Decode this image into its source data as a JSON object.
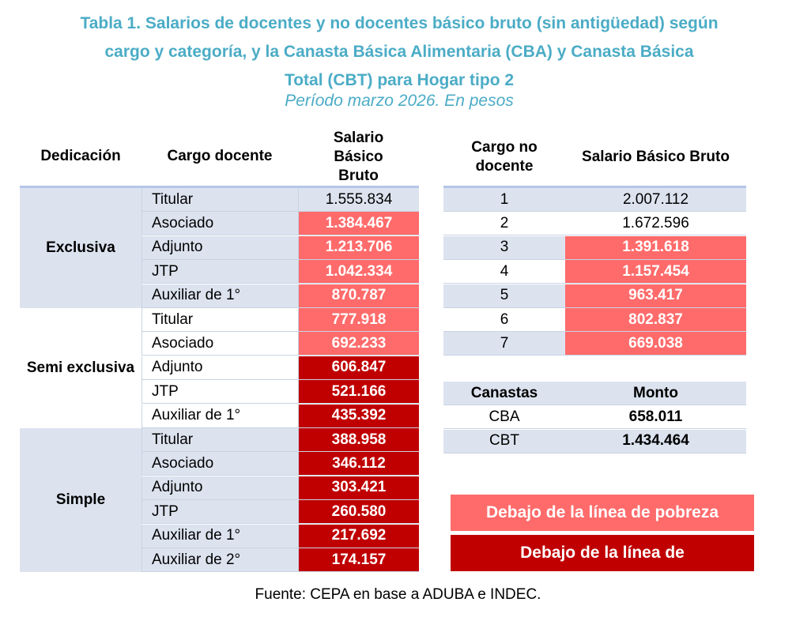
{
  "title": {
    "line1": "Tabla 1. Salarios de docentes y no docentes básico bruto (sin antigüedad) según",
    "line2": "cargo y categoría, y la Canasta Básica Alimentaria (CBA) y Canasta Básica",
    "line3": "Total (CBT) para Hogar tipo 2",
    "subtitle": "Período marzo 2026. En pesos"
  },
  "docentes": {
    "headers": {
      "dedicacion": "Dedicación",
      "cargo": "Cargo docente",
      "salario": "Salario Básico Bruto"
    },
    "groups": [
      {
        "name": "Exclusiva",
        "rows": [
          {
            "cargo": "Titular",
            "salario": "1.555.834",
            "status": "none"
          },
          {
            "cargo": "Asociado",
            "salario": "1.384.467",
            "status": "pobreza"
          },
          {
            "cargo": "Adjunto",
            "salario": "1.213.706",
            "status": "pobreza"
          },
          {
            "cargo": "JTP",
            "salario": "1.042.334",
            "status": "pobreza"
          },
          {
            "cargo": "Auxiliar de 1°",
            "salario": "870.787",
            "status": "pobreza"
          }
        ]
      },
      {
        "name": "Semi exclusiva",
        "rows": [
          {
            "cargo": "Titular",
            "salario": "777.918",
            "status": "pobreza"
          },
          {
            "cargo": "Asociado",
            "salario": "692.233",
            "status": "pobreza"
          },
          {
            "cargo": "Adjunto",
            "salario": "606.847",
            "status": "indigencia"
          },
          {
            "cargo": "JTP",
            "salario": "521.166",
            "status": "indigencia"
          },
          {
            "cargo": "Auxiliar de 1°",
            "salario": "435.392",
            "status": "indigencia"
          }
        ]
      },
      {
        "name": "Simple",
        "rows": [
          {
            "cargo": "Titular",
            "salario": "388.958",
            "status": "indigencia"
          },
          {
            "cargo": "Asociado",
            "salario": "346.112",
            "status": "indigencia"
          },
          {
            "cargo": "Adjunto",
            "salario": "303.421",
            "status": "indigencia"
          },
          {
            "cargo": "JTP",
            "salario": "260.580",
            "status": "indigencia"
          },
          {
            "cargo": "Auxiliar de 1°",
            "salario": "217.692",
            "status": "indigencia"
          },
          {
            "cargo": "Auxiliar de 2°",
            "salario": "174.157",
            "status": "indigencia"
          }
        ]
      }
    ]
  },
  "no_docentes": {
    "headers": {
      "cargo": "Cargo no docente",
      "salario": "Salario Básico Bruto"
    },
    "rows": [
      {
        "cargo": "1",
        "salario": "2.007.112",
        "status": "none"
      },
      {
        "cargo": "2",
        "salario": "1.672.596",
        "status": "none"
      },
      {
        "cargo": "3",
        "salario": "1.391.618",
        "status": "pobreza"
      },
      {
        "cargo": "4",
        "salario": "1.157.454",
        "status": "pobreza"
      },
      {
        "cargo": "5",
        "salario": "963.417",
        "status": "pobreza"
      },
      {
        "cargo": "6",
        "salario": "802.837",
        "status": "pobreza"
      },
      {
        "cargo": "7",
        "salario": "669.038",
        "status": "pobreza"
      }
    ]
  },
  "canastas": {
    "headers": {
      "canastas": "Canastas",
      "monto": "Monto"
    },
    "rows": [
      {
        "name": "CBA",
        "monto": "658.011"
      },
      {
        "name": "CBT",
        "monto": "1.434.464"
      }
    ]
  },
  "legend": {
    "pobreza": "Debajo de la línea de pobreza",
    "indigencia": "Debajo de la línea de"
  },
  "source": "Fuente: CEPA en base a ADUBA e INDEC.",
  "colors": {
    "title": "#4bacc6",
    "pobreza": "#ff6b6b",
    "indigencia": "#c00000",
    "shade": "#dce3ef"
  }
}
